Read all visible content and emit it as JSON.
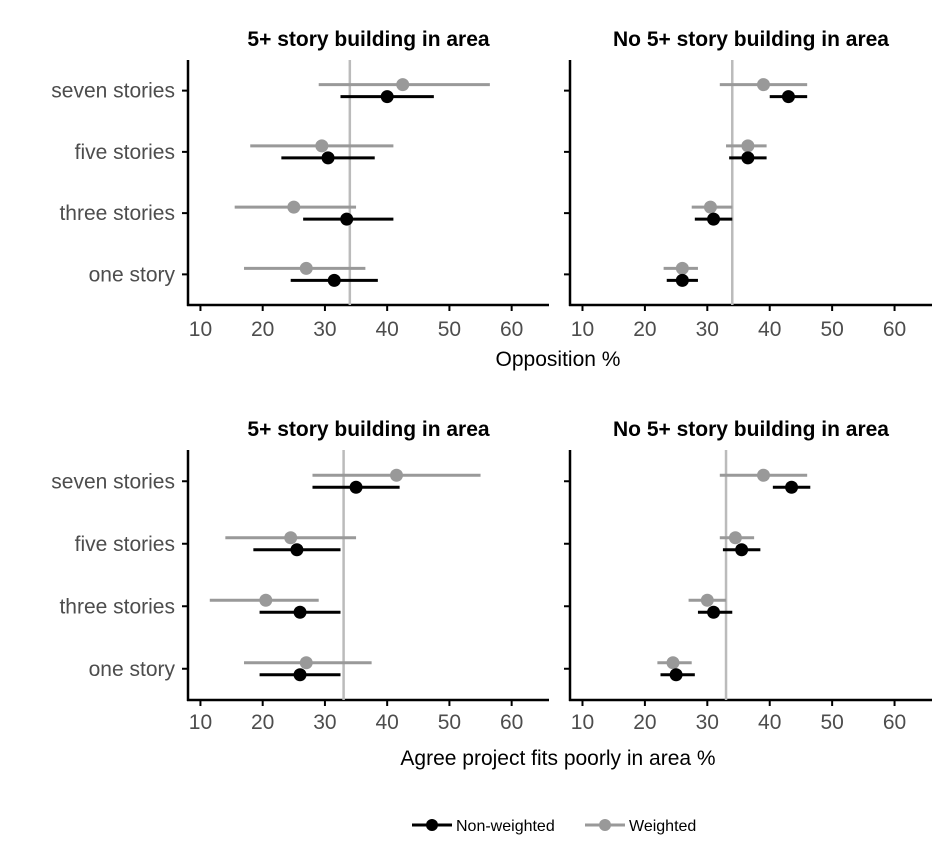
{
  "chart_data": {
    "type": "dot-interval",
    "categories": [
      "seven stories",
      "five stories",
      "three stories",
      "one story"
    ],
    "xlim": [
      8,
      66
    ],
    "xticks": [
      10,
      20,
      30,
      40,
      50,
      60
    ],
    "colors": {
      "non_weighted": "#000000",
      "weighted": "#999999",
      "reference": "#bbbbbb"
    },
    "legend": {
      "position": "bottom",
      "entries": [
        {
          "key": "non_weighted",
          "label": "Non-weighted"
        },
        {
          "key": "weighted",
          "label": "Weighted"
        }
      ]
    },
    "rows": [
      {
        "xlabel": "Opposition %",
        "panels": [
          {
            "title": "5+ story building in area",
            "reference": 34,
            "non_weighted": [
              {
                "category": "seven stories",
                "estimate": 40,
                "lower": 32.5,
                "upper": 47.5
              },
              {
                "category": "five stories",
                "estimate": 30.5,
                "lower": 23,
                "upper": 38
              },
              {
                "category": "three stories",
                "estimate": 33.5,
                "lower": 26.5,
                "upper": 41
              },
              {
                "category": "one story",
                "estimate": 31.5,
                "lower": 24.5,
                "upper": 38.5
              }
            ],
            "weighted": [
              {
                "category": "seven stories",
                "estimate": 42.5,
                "lower": 29,
                "upper": 56.5
              },
              {
                "category": "five stories",
                "estimate": 29.5,
                "lower": 18,
                "upper": 41
              },
              {
                "category": "three stories",
                "estimate": 25,
                "lower": 15.5,
                "upper": 35
              },
              {
                "category": "one story",
                "estimate": 27,
                "lower": 17,
                "upper": 36.5
              }
            ]
          },
          {
            "title": "No 5+ story building in area",
            "reference": 34,
            "non_weighted": [
              {
                "category": "seven stories",
                "estimate": 43,
                "lower": 40,
                "upper": 46
              },
              {
                "category": "five stories",
                "estimate": 36.5,
                "lower": 33.5,
                "upper": 39.5
              },
              {
                "category": "three stories",
                "estimate": 31,
                "lower": 28,
                "upper": 34
              },
              {
                "category": "one story",
                "estimate": 26,
                "lower": 23.5,
                "upper": 28.5
              }
            ],
            "weighted": [
              {
                "category": "seven stories",
                "estimate": 39,
                "lower": 32,
                "upper": 46
              },
              {
                "category": "five stories",
                "estimate": 36.5,
                "lower": 33,
                "upper": 39.5
              },
              {
                "category": "three stories",
                "estimate": 30.5,
                "lower": 27.5,
                "upper": 34
              },
              {
                "category": "one story",
                "estimate": 26,
                "lower": 23,
                "upper": 28.5
              }
            ]
          }
        ]
      },
      {
        "xlabel": "Agree project fits poorly in area %",
        "panels": [
          {
            "title": "5+ story building in area",
            "reference": 33,
            "non_weighted": [
              {
                "category": "seven stories",
                "estimate": 35,
                "lower": 28,
                "upper": 42
              },
              {
                "category": "five stories",
                "estimate": 25.5,
                "lower": 18.5,
                "upper": 32.5
              },
              {
                "category": "three stories",
                "estimate": 26,
                "lower": 19.5,
                "upper": 32.5
              },
              {
                "category": "one story",
                "estimate": 26,
                "lower": 19.5,
                "upper": 32.5
              }
            ],
            "weighted": [
              {
                "category": "seven stories",
                "estimate": 41.5,
                "lower": 28,
                "upper": 55
              },
              {
                "category": "five stories",
                "estimate": 24.5,
                "lower": 14,
                "upper": 35
              },
              {
                "category": "three stories",
                "estimate": 20.5,
                "lower": 11.5,
                "upper": 29
              },
              {
                "category": "one story",
                "estimate": 27,
                "lower": 17,
                "upper": 37.5
              }
            ]
          },
          {
            "title": "No 5+ story building in area",
            "reference": 33,
            "non_weighted": [
              {
                "category": "seven stories",
                "estimate": 43.5,
                "lower": 40.5,
                "upper": 46.5
              },
              {
                "category": "five stories",
                "estimate": 35.5,
                "lower": 32.5,
                "upper": 38.5
              },
              {
                "category": "three stories",
                "estimate": 31,
                "lower": 28.5,
                "upper": 34
              },
              {
                "category": "one story",
                "estimate": 25,
                "lower": 22.5,
                "upper": 28
              }
            ],
            "weighted": [
              {
                "category": "seven stories",
                "estimate": 39,
                "lower": 32,
                "upper": 46
              },
              {
                "category": "five stories",
                "estimate": 34.5,
                "lower": 32,
                "upper": 37.5
              },
              {
                "category": "three stories",
                "estimate": 30,
                "lower": 27,
                "upper": 33
              },
              {
                "category": "one story",
                "estimate": 24.5,
                "lower": 22,
                "upper": 27.5
              }
            ]
          }
        ]
      }
    ]
  }
}
